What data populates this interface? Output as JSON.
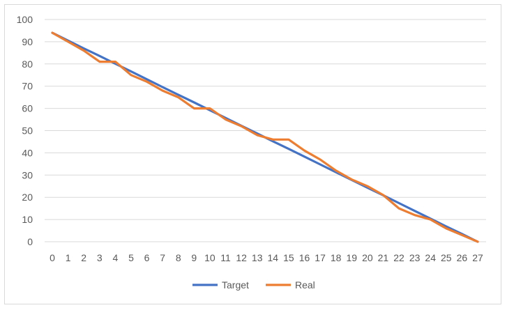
{
  "chart_data": {
    "type": "line",
    "title": "",
    "xlabel": "",
    "ylabel": "",
    "x": [
      0,
      1,
      2,
      3,
      4,
      5,
      6,
      7,
      8,
      9,
      10,
      11,
      12,
      13,
      14,
      15,
      16,
      17,
      18,
      19,
      20,
      21,
      22,
      23,
      24,
      25,
      26,
      27
    ],
    "ylim": [
      0,
      100
    ],
    "yticks": [
      0,
      10,
      20,
      30,
      40,
      50,
      60,
      70,
      80,
      90,
      100
    ],
    "grid": true,
    "legend": "bottom",
    "series": [
      {
        "name": "Target",
        "color": "#4472c4",
        "values": [
          94,
          90.5,
          87,
          83.6,
          80.1,
          76.6,
          73.1,
          69.6,
          66.1,
          62.7,
          59.2,
          55.7,
          52.2,
          48.7,
          45.2,
          41.8,
          38.3,
          34.8,
          31.3,
          27.8,
          24.3,
          20.9,
          17.4,
          13.9,
          10.4,
          6.9,
          3.5,
          0
        ]
      },
      {
        "name": "Real",
        "color": "#ed7d31",
        "values": [
          94,
          90,
          86,
          81,
          81,
          75,
          72,
          68,
          65,
          60,
          60,
          55,
          52,
          48,
          46,
          46,
          41,
          37,
          32,
          28,
          25,
          21,
          15,
          12,
          10,
          6,
          3,
          0
        ]
      }
    ]
  }
}
